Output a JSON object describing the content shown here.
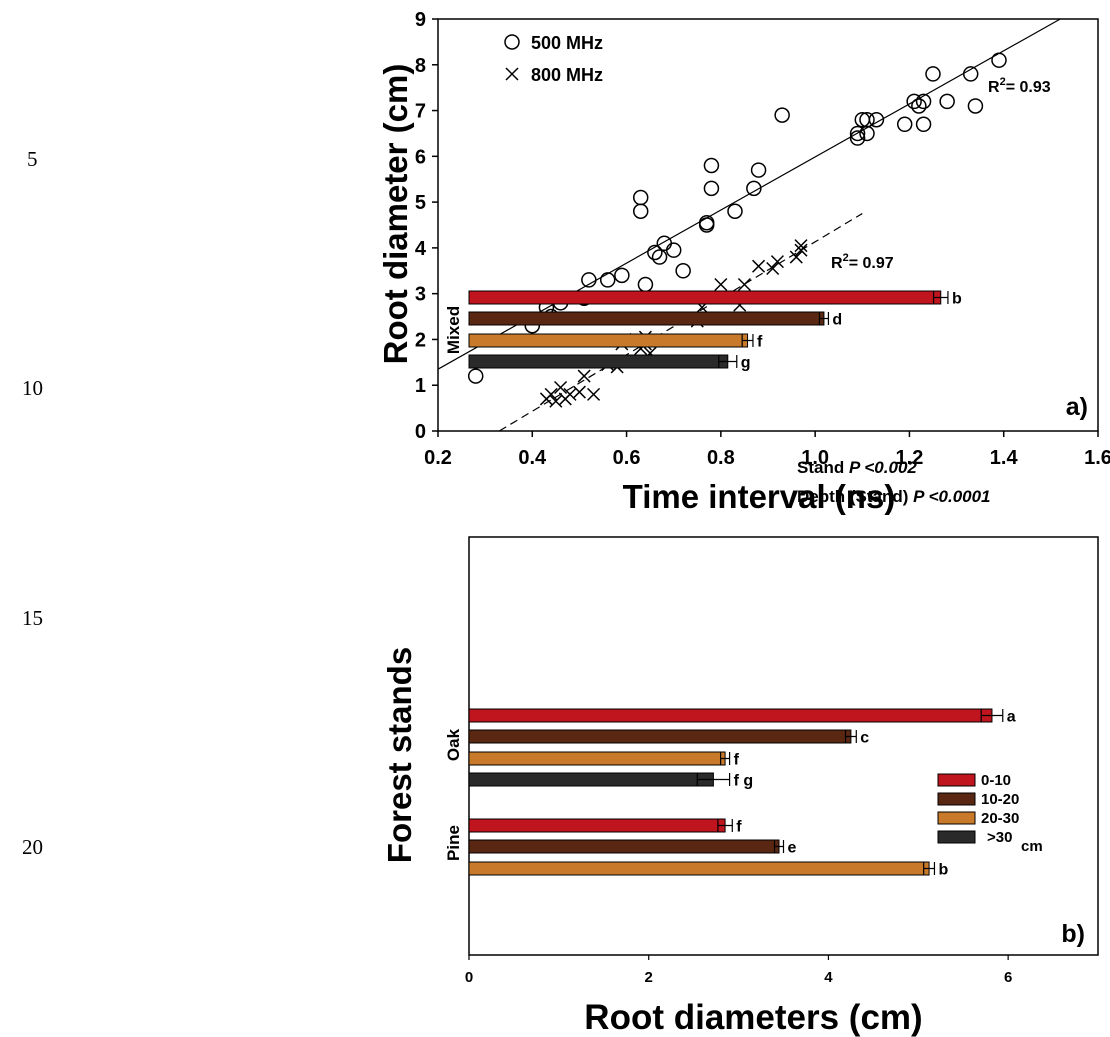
{
  "line_numbers": [
    "5",
    "10",
    "15",
    "20"
  ],
  "chart_data": [
    {
      "type": "scatter",
      "panel_label": "a)",
      "title": "",
      "xlabel": "Time interval (ns)",
      "ylabel": "Root diameter (cm)",
      "xlim": [
        0.2,
        1.6
      ],
      "ylim": [
        0,
        9
      ],
      "xticks": [
        "0.2",
        "0.4",
        "0.6",
        "0.8",
        "1.0",
        "1.2",
        "1.4",
        "1.6"
      ],
      "yticks": [
        "0",
        "1",
        "2",
        "3",
        "4",
        "5",
        "6",
        "7",
        "8",
        "9"
      ],
      "legend_position": "top-left",
      "grid": false,
      "series": [
        {
          "name": "500 MHz",
          "marker": "circle",
          "r2_label": "R²= 0.93",
          "fit": {
            "x": [
              0.2,
              1.52
            ],
            "y": [
              1.35,
              9.0
            ],
            "style": "solid"
          },
          "points": [
            [
              0.28,
              1.2
            ],
            [
              0.4,
              2.3
            ],
            [
              0.43,
              2.7
            ],
            [
              0.44,
              2.5
            ],
            [
              0.46,
              2.8
            ],
            [
              0.51,
              2.9
            ],
            [
              0.52,
              3.3
            ],
            [
              0.56,
              3.3
            ],
            [
              0.59,
              3.4
            ],
            [
              0.63,
              4.8
            ],
            [
              0.63,
              5.1
            ],
            [
              0.64,
              3.2
            ],
            [
              0.66,
              3.9
            ],
            [
              0.67,
              3.8
            ],
            [
              0.68,
              4.1
            ],
            [
              0.7,
              3.95
            ],
            [
              0.72,
              3.5
            ],
            [
              0.77,
              4.5
            ],
            [
              0.77,
              4.55
            ],
            [
              0.78,
              5.3
            ],
            [
              0.78,
              5.8
            ],
            [
              0.83,
              4.8
            ],
            [
              0.87,
              5.3
            ],
            [
              0.88,
              5.7
            ],
            [
              0.93,
              6.9
            ],
            [
              1.09,
              6.4
            ],
            [
              1.09,
              6.5
            ],
            [
              1.1,
              6.8
            ],
            [
              1.11,
              6.5
            ],
            [
              1.11,
              6.8
            ],
            [
              1.13,
              6.8
            ],
            [
              1.19,
              6.7
            ],
            [
              1.21,
              7.2
            ],
            [
              1.22,
              7.1
            ],
            [
              1.23,
              7.2
            ],
            [
              1.23,
              6.7
            ],
            [
              1.25,
              7.8
            ],
            [
              1.28,
              7.2
            ],
            [
              1.33,
              7.8
            ],
            [
              1.34,
              7.1
            ],
            [
              1.39,
              8.1
            ]
          ]
        },
        {
          "name": "800 MHz",
          "marker": "x",
          "r2_label": "R²= 0.97",
          "fit": {
            "x": [
              0.33,
              1.1
            ],
            "y": [
              0.0,
              4.75
            ],
            "style": "dashed"
          },
          "points": [
            [
              0.43,
              0.7
            ],
            [
              0.44,
              0.8
            ],
            [
              0.45,
              0.65
            ],
            [
              0.46,
              0.95
            ],
            [
              0.47,
              0.7
            ],
            [
              0.48,
              0.8
            ],
            [
              0.5,
              0.85
            ],
            [
              0.51,
              1.2
            ],
            [
              0.53,
              0.8
            ],
            [
              0.56,
              1.45
            ],
            [
              0.58,
              1.4
            ],
            [
              0.59,
              1.9
            ],
            [
              0.62,
              2.0
            ],
            [
              0.63,
              1.8
            ],
            [
              0.64,
              1.9
            ],
            [
              0.64,
              2.05
            ],
            [
              0.65,
              1.7
            ],
            [
              0.75,
              2.4
            ],
            [
              0.76,
              2.45
            ],
            [
              0.76,
              2.7
            ],
            [
              0.8,
              3.2
            ],
            [
              0.84,
              2.75
            ],
            [
              0.85,
              3.2
            ],
            [
              0.88,
              3.6
            ],
            [
              0.91,
              3.55
            ],
            [
              0.92,
              3.7
            ],
            [
              0.96,
              3.8
            ],
            [
              0.97,
              4.05
            ],
            [
              0.97,
              3.95
            ]
          ]
        }
      ]
    },
    {
      "type": "bar",
      "orientation": "horizontal",
      "panel_label": "b)",
      "title": "",
      "xlabel": "Root diameters (cm)",
      "ylabel": "Forest stands",
      "xlim": [
        0,
        7
      ],
      "xticks": [
        "0",
        "2",
        "4",
        "6"
      ],
      "categories": [
        "Mixed",
        "Oak",
        "Pine"
      ],
      "legend_position": "right",
      "legend_unit": "cm",
      "grid": false,
      "annotations": [
        {
          "prefix": "Stand ",
          "stat": "P <0.002"
        },
        {
          "prefix": "Depth (Stand) ",
          "stat": "P <0.0001"
        }
      ],
      "series": [
        {
          "name": "0-10",
          "color": "#c0141e",
          "values": [
            5.25,
            5.82,
            2.85
          ],
          "errors": [
            0.08,
            0.12,
            0.08
          ],
          "letters": [
            "b",
            "a",
            "f"
          ]
        },
        {
          "name": "10-20",
          "color": "#5a2812",
          "values": [
            3.95,
            4.25,
            3.45
          ],
          "errors": [
            0.05,
            0.06,
            0.05
          ],
          "letters": [
            "d",
            "c",
            "e"
          ]
        },
        {
          "name": "20-30",
          "color": "#c87a2a",
          "values": [
            3.1,
            2.85,
            5.12
          ],
          "errors": [
            0.06,
            0.05,
            0.06
          ],
          "letters": [
            "f",
            "f",
            "b"
          ]
        },
        {
          "name": ">30",
          "color": "#2a2a2a",
          "values": [
            2.88,
            2.72,
            null
          ],
          "errors": [
            0.1,
            0.18,
            null
          ],
          "letters": [
            "g",
            "f g",
            ""
          ]
        }
      ]
    }
  ]
}
